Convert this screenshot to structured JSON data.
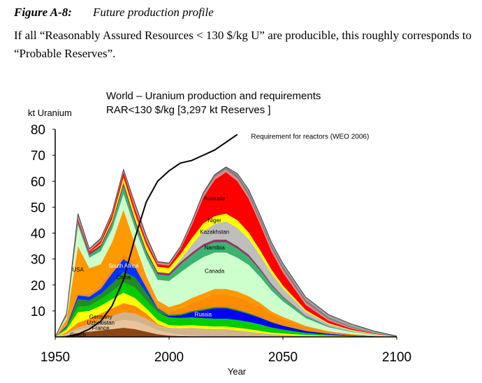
{
  "figure": {
    "label": "Figure A-8:",
    "title": "Future production profile",
    "caption": "If all “Reasonably Assured Resources  < 130 $/kg U” are producible, this roughly corresponds to “Probable Reserves”."
  },
  "chart_data": {
    "type": "area",
    "title_line1": "World – Uranium production and requirements",
    "title_line2": "RAR<130 $/kg [3,297 kt Reserves ]",
    "ylabel": "kt Uranium",
    "xlabel": "Year",
    "xlim": [
      1950,
      2100
    ],
    "ylim": [
      0,
      80
    ],
    "xticks": [
      "1950",
      "2000",
      "2050",
      "2100"
    ],
    "yticks": [
      "10",
      "20",
      "30",
      "40",
      "50",
      "60",
      "70",
      "80"
    ],
    "x": [
      1950,
      1955,
      1960,
      1965,
      1970,
      1975,
      1980,
      1985,
      1990,
      1995,
      2000,
      2005,
      2010,
      2015,
      2020,
      2025,
      2030,
      2035,
      2040,
      2045,
      2050,
      2060,
      2070,
      2080,
      2090,
      2100
    ],
    "series": [
      {
        "name": "Czech",
        "color": "#8B4513",
        "values": [
          0,
          0.5,
          1.5,
          2,
          2.5,
          3,
          3.5,
          3,
          2,
          1,
          0.5,
          0.3,
          0.2,
          0,
          0,
          0,
          0,
          0,
          0,
          0,
          0,
          0,
          0,
          0,
          0,
          0
        ]
      },
      {
        "name": "France",
        "color": "#E8C39E",
        "values": [
          0,
          0.3,
          1,
          1.5,
          2,
          2.5,
          3,
          3,
          2.5,
          1.5,
          1,
          0.5,
          0.3,
          0.2,
          0,
          0,
          0,
          0,
          0,
          0,
          0,
          0,
          0,
          0,
          0,
          0
        ]
      },
      {
        "name": "Uzbekistan",
        "color": "#D2B48C",
        "values": [
          0,
          0.5,
          1,
          1.5,
          2,
          2.5,
          3,
          3,
          2.5,
          2,
          2,
          2.5,
          3,
          3,
          3,
          3,
          2.5,
          2,
          1.5,
          1,
          0.8,
          0.4,
          0.2,
          0.1,
          0,
          0
        ]
      },
      {
        "name": "Germany",
        "color": "#FF8C00",
        "values": [
          0,
          0.5,
          2,
          2,
          2.5,
          3,
          3.5,
          3,
          2,
          0.5,
          0,
          0,
          0,
          0,
          0,
          0,
          0,
          0,
          0,
          0,
          0,
          0,
          0,
          0,
          0,
          0
        ]
      },
      {
        "name": "",
        "color": "#FFFF00",
        "values": [
          0,
          1,
          4,
          3,
          3,
          3.5,
          4,
          3,
          2,
          1.5,
          1,
          1,
          1,
          1,
          1,
          1,
          1,
          1,
          0.8,
          0.6,
          0.5,
          0.3,
          0.2,
          0.1,
          0.05,
          0
        ]
      },
      {
        "name": "",
        "color": "#00CC00",
        "values": [
          0,
          0.5,
          2,
          2,
          2.5,
          3,
          4,
          4,
          3,
          3,
          3,
          3,
          3,
          3,
          3,
          3,
          3,
          2.8,
          2.5,
          2,
          1.5,
          0.8,
          0.4,
          0.2,
          0.1,
          0
        ]
      },
      {
        "name": "Russia",
        "color": "#0000FF",
        "values": [
          0,
          0,
          0,
          0,
          0,
          0,
          0,
          0,
          0,
          0,
          0.5,
          1,
          2,
          3,
          4,
          4,
          3.5,
          3,
          2.5,
          2,
          1.5,
          0.8,
          0.4,
          0.2,
          0.1,
          0
        ]
      },
      {
        "name": "China",
        "color": "#228B22",
        "values": [
          0,
          0.5,
          3,
          2,
          2,
          3,
          4,
          4,
          3,
          1,
          0.5,
          0.5,
          0.5,
          0.5,
          0.5,
          0.5,
          0.5,
          0.4,
          0.3,
          0.2,
          0.1,
          0.05,
          0,
          0,
          0,
          0
        ]
      },
      {
        "name": "South Africa",
        "color": "#0033FF",
        "values": [
          0,
          0.5,
          1.5,
          1.5,
          2,
          4,
          5,
          4,
          2,
          0.5,
          0,
          0,
          0,
          0,
          0,
          0,
          0,
          0,
          0,
          0,
          0,
          0,
          0,
          0,
          0,
          0
        ]
      },
      {
        "name": "",
        "color": "#FF8C00",
        "values": [
          0,
          0.5,
          1,
          1,
          1.5,
          2,
          2,
          2,
          1.5,
          1,
          1,
          2,
          3,
          4,
          5,
          5,
          5,
          4.5,
          4,
          3,
          2.5,
          1.5,
          0.8,
          0.4,
          0.2,
          0
        ]
      },
      {
        "name": "USA",
        "color": "#FF9900",
        "values": [
          0,
          2,
          18,
          10,
          8,
          10,
          17,
          7,
          3,
          2,
          2,
          2,
          2,
          2,
          2,
          2,
          2,
          2,
          1.5,
          1,
          0.8,
          0.4,
          0.2,
          0.1,
          0,
          0
        ]
      },
      {
        "name": "Canada",
        "color": "#CCFFCC",
        "values": [
          0,
          1,
          8,
          4,
          5,
          5,
          6,
          6,
          7,
          8,
          10,
          12,
          13,
          14,
          14,
          14,
          13,
          12,
          10,
          8,
          6,
          3,
          1.5,
          0.8,
          0.3,
          0
        ]
      },
      {
        "name": "Namibia",
        "color": "#3CB371",
        "values": [
          0,
          0.3,
          1,
          1,
          1.5,
          2,
          3,
          2,
          2,
          2,
          2,
          3,
          3.5,
          4,
          4,
          4,
          3.5,
          3,
          2.5,
          2,
          1.5,
          0.8,
          0.4,
          0.2,
          0.1,
          0
        ]
      },
      {
        "name": "",
        "color": "#8B3A62",
        "values": [
          0,
          0.3,
          1,
          1,
          1,
          1,
          1.5,
          1.5,
          1,
          1,
          1,
          1,
          1,
          1,
          1,
          1,
          1,
          1,
          0.8,
          0.6,
          0.4,
          0.2,
          0.1,
          0,
          0,
          0
        ]
      },
      {
        "name": "Kazakhstan",
        "color": "#BEBEBE",
        "values": [
          0,
          0,
          0,
          0,
          0,
          0,
          0,
          0,
          0,
          0,
          0,
          1,
          3,
          5,
          6,
          7,
          7,
          6,
          5,
          4,
          3,
          1.5,
          0.8,
          0.4,
          0.2,
          0
        ]
      },
      {
        "name": "Niger",
        "color": "#FFFF00",
        "values": [
          0,
          0,
          0,
          0,
          0.5,
          1,
          2,
          2,
          2,
          2,
          2,
          2,
          2.5,
          3,
          3,
          3,
          3,
          2.5,
          2,
          1.5,
          1.2,
          0.6,
          0.3,
          0.2,
          0.1,
          0
        ]
      },
      {
        "name": "Australia",
        "color": "#FF0000",
        "values": [
          0,
          0,
          0.5,
          0.5,
          1,
          1.5,
          2,
          2,
          1.5,
          1,
          1,
          2,
          5,
          10,
          14,
          16,
          15,
          13,
          10,
          7,
          5,
          2,
          1,
          0.5,
          0.2,
          0
        ]
      },
      {
        "name": "",
        "color": "#DD8888",
        "values": [
          0,
          0.3,
          1,
          0.5,
          0.5,
          0.5,
          0.5,
          1,
          1,
          0.5,
          0.5,
          0.5,
          1,
          1,
          1,
          1,
          1,
          1,
          1,
          1,
          1,
          0.8,
          0.5,
          0.3,
          0.1,
          0
        ]
      },
      {
        "name": "",
        "color": "#808080",
        "values": [
          0,
          0.3,
          1,
          0.5,
          0.5,
          0.5,
          0.5,
          1,
          1,
          0.5,
          0.5,
          0.5,
          0.5,
          0.8,
          1,
          1,
          1.5,
          1.5,
          1.5,
          1.5,
          1.5,
          1.2,
          0.8,
          0.5,
          0.3,
          0.1
        ]
      },
      {
        "name": "",
        "color": "#A0A0A0",
        "values": [
          0,
          0,
          0,
          0,
          0,
          0,
          0,
          0,
          0,
          0,
          0,
          0,
          0,
          0,
          0,
          0,
          0.5,
          1,
          1,
          1,
          1,
          1,
          1,
          1,
          0.5,
          0.2
        ]
      }
    ],
    "requirement": {
      "label": "Requirement for reactors (WEO 2006)",
      "x": [
        1955,
        1960,
        1965,
        1970,
        1975,
        1980,
        1985,
        1990,
        1995,
        2000,
        2005,
        2010,
        2015,
        2020,
        2025,
        2030
      ],
      "values": [
        0,
        1,
        3,
        6,
        12,
        22,
        38,
        52,
        60,
        64,
        67,
        68,
        70,
        72,
        75,
        78
      ]
    }
  }
}
